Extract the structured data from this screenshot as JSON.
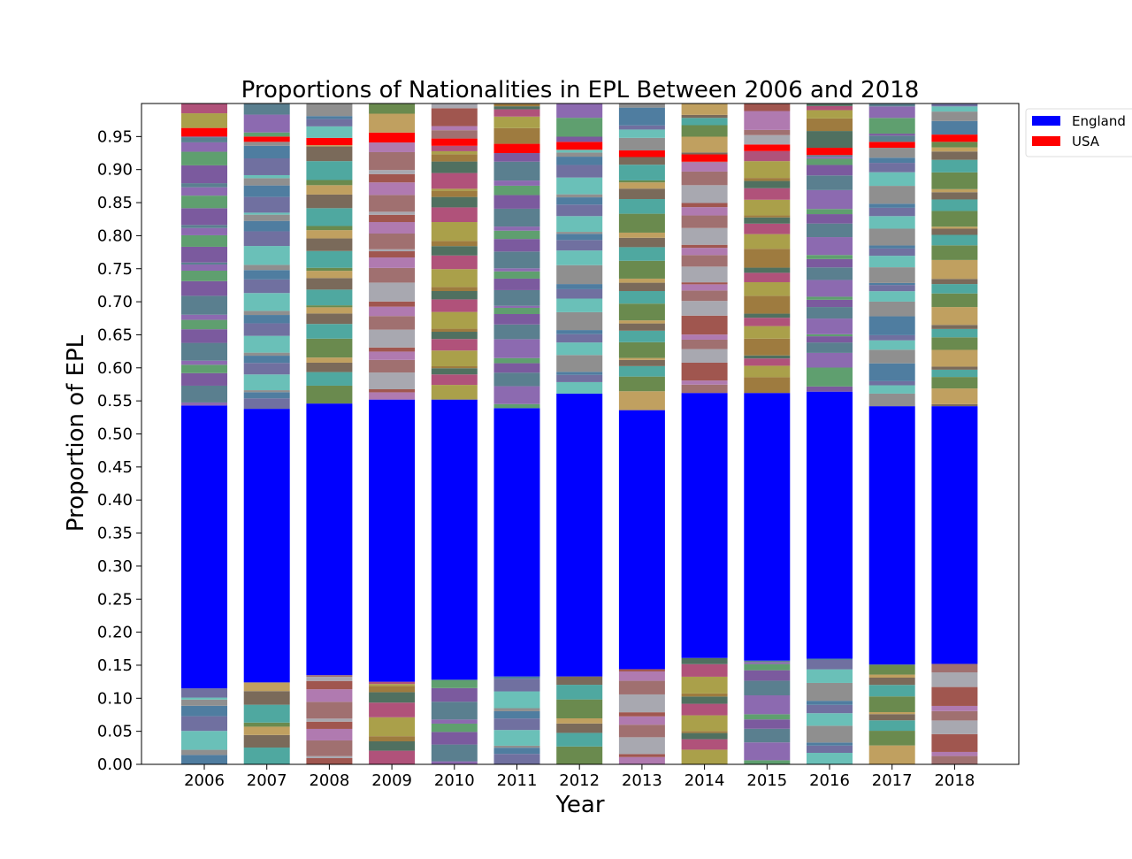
{
  "chart_data": {
    "type": "bar",
    "stacked": true,
    "title": "Proportions of Nationalities in EPL Between 2006 and 2018",
    "xlabel": "Year",
    "ylabel": "Proportion of EPL",
    "ylim": [
      0,
      1.0
    ],
    "yticks": [
      "0.00",
      "0.05",
      "0.10",
      "0.15",
      "0.20",
      "0.25",
      "0.30",
      "0.35",
      "0.40",
      "0.45",
      "0.50",
      "0.55",
      "0.60",
      "0.65",
      "0.70",
      "0.75",
      "0.80",
      "0.85",
      "0.90",
      "0.95"
    ],
    "categories": [
      "2006",
      "2007",
      "2008",
      "2009",
      "2010",
      "2011",
      "2012",
      "2013",
      "2014",
      "2015",
      "2016",
      "2017",
      "2018"
    ],
    "legend": {
      "placement": "outside-right-top",
      "entries": [
        {
          "name": "England",
          "color": "#0000ff"
        },
        {
          "name": "USA",
          "color": "#ff0000"
        }
      ]
    },
    "series": [
      {
        "name": "England",
        "color": "#0000ff",
        "bottom": [
          0.115,
          0.124,
          0.135,
          0.125,
          0.128,
          0.133,
          0.133,
          0.144,
          0.161,
          0.157,
          0.16,
          0.151,
          0.152
        ],
        "values": [
          0.428,
          0.414,
          0.411,
          0.427,
          0.424,
          0.406,
          0.428,
          0.392,
          0.401,
          0.405,
          0.404,
          0.391,
          0.39
        ]
      },
      {
        "name": "USA",
        "color": "#ff0000",
        "bottom": [
          0.95,
          0.942,
          0.937,
          0.941,
          0.936,
          0.925,
          0.93,
          0.919,
          0.912,
          0.928,
          0.922,
          0.933,
          0.942
        ],
        "values": [
          0.013,
          0.008,
          0.011,
          0.015,
          0.011,
          0.014,
          0.012,
          0.01,
          0.011,
          0.01,
          0.011,
          0.009,
          0.011
        ]
      }
    ],
    "other_series_colors": [
      "#5a7f8f",
      "#6a8a4e",
      "#9e7b3f",
      "#4f7da0",
      "#b07ab0",
      "#7b5a9e",
      "#4fa8a0",
      "#aaa04a",
      "#8f8f8f",
      "#a0564f",
      "#5f9f6f",
      "#7a6a5a",
      "#b0527a",
      "#6ac0b8",
      "#a8a8b0",
      "#8c6ab0",
      "#c0a060",
      "#507060",
      "#7070a0",
      "#a07070"
    ]
  }
}
